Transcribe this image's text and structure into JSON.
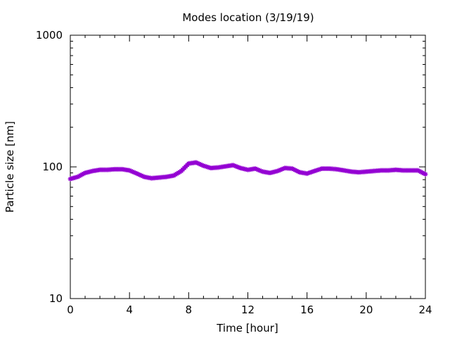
{
  "chart_data": {
    "type": "line",
    "title": "Modes location (3/19/19)",
    "xlabel": "Time [hour]",
    "ylabel": "Particle size [nm]",
    "xlim": [
      0,
      24
    ],
    "ylim": [
      10,
      1000
    ],
    "yscale": "log",
    "x_ticks": [
      0,
      4,
      8,
      12,
      16,
      20,
      24
    ],
    "x_tick_labels": [
      "0",
      "4",
      "8",
      "12",
      "16",
      "20",
      "24"
    ],
    "y_ticks": [
      10,
      100,
      1000
    ],
    "y_tick_labels": [
      "10",
      "100",
      "1000"
    ],
    "grid": false,
    "legend": "none",
    "series": [
      {
        "color": "#9400d3",
        "marker": "star",
        "x": [
          0,
          0.5,
          1,
          1.5,
          2,
          2.5,
          3,
          3.5,
          4,
          4.5,
          5,
          5.5,
          6,
          6.5,
          7,
          7.5,
          8,
          8.5,
          9,
          9.5,
          10,
          10.5,
          11,
          11.5,
          12,
          12.5,
          13,
          13.5,
          14,
          14.5,
          15,
          15.5,
          16,
          16.5,
          17,
          17.5,
          18,
          18.5,
          19,
          19.5,
          20,
          20.5,
          21,
          21.5,
          22,
          22.5,
          23,
          23.5,
          24
        ],
        "y": [
          81,
          84,
          90,
          93,
          95,
          95,
          96,
          96,
          94,
          89,
          84,
          82,
          83,
          84,
          86,
          93,
          106,
          108,
          102,
          98,
          99,
          101,
          103,
          98,
          95,
          97,
          92,
          90,
          93,
          98,
          97,
          91,
          89,
          93,
          97,
          97,
          96,
          94,
          92,
          91,
          92,
          93,
          94,
          94,
          95,
          94,
          94,
          94,
          88
        ]
      }
    ]
  }
}
